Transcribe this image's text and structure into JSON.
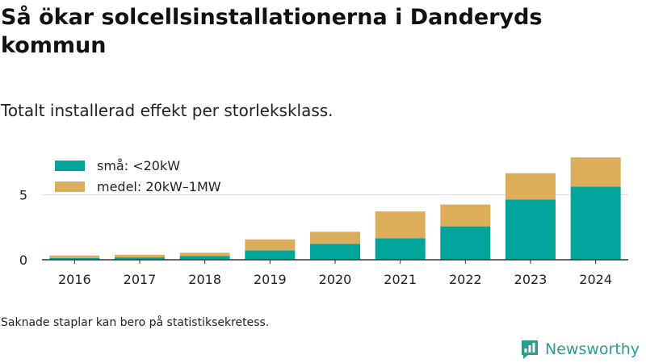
{
  "header": {
    "title": "Så ökar solcellsinstallationerna i Danderyds kommun",
    "subtitle": "Totalt installerad effekt per storleksklass."
  },
  "footer": {
    "note": "Saknade staplar kan bero på statistiksekretess.",
    "brand": "Newsworthy"
  },
  "colors": {
    "small": "#00a49a",
    "medium": "#dcad5a",
    "brand": "#2a9d8f",
    "grid": "#dddddd",
    "axis": "#333333"
  },
  "chart_data": {
    "type": "bar",
    "stacked": true,
    "categories": [
      "2016",
      "2017",
      "2018",
      "2019",
      "2020",
      "2021",
      "2022",
      "2023",
      "2024"
    ],
    "series": [
      {
        "name": "små: <20kW",
        "values": [
          0.13,
          0.18,
          0.28,
          0.72,
          1.21,
          1.66,
          2.57,
          4.63,
          5.62
        ]
      },
      {
        "name": "medel: 20kW–1MW",
        "values": [
          0.2,
          0.2,
          0.26,
          0.85,
          0.94,
          2.06,
          1.68,
          2.03,
          2.26
        ]
      }
    ],
    "yticks": [
      0,
      5
    ],
    "ylim": [
      0,
      8
    ],
    "grid": true,
    "legend_position": "top-left"
  }
}
